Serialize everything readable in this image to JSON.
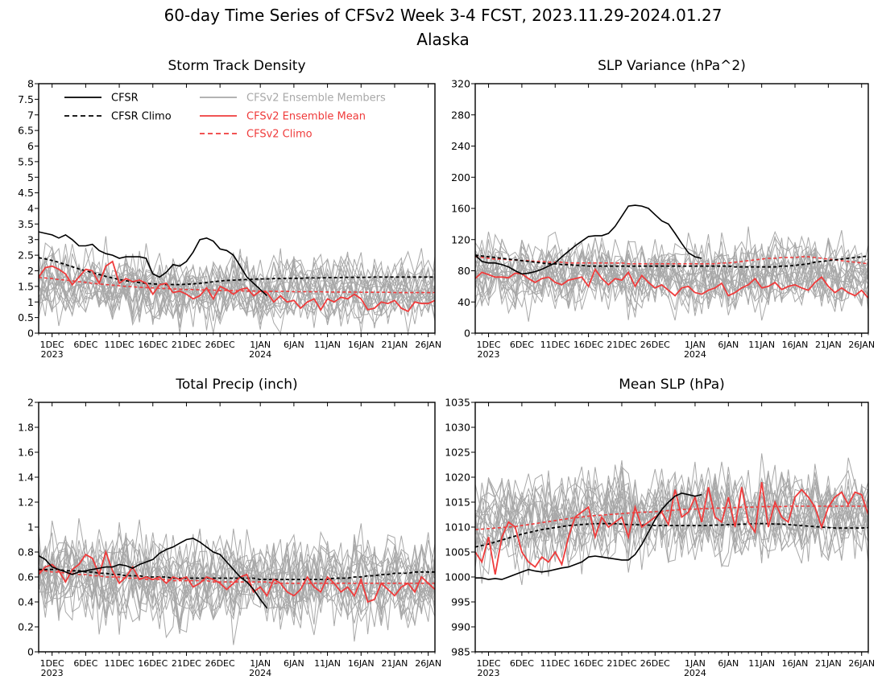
{
  "title_line1": "60-day Time Series of CFSv2 Week 3-4 FCST, 2023.11.29-2024.01.27",
  "title_line2": "Alaska",
  "x_axis": {
    "tick_days": [
      2,
      7,
      12,
      17,
      22,
      27,
      33,
      38,
      43,
      48,
      53,
      58
    ],
    "tick_labels": [
      "1DEC",
      "6DEC",
      "11DEC",
      "16DEC",
      "21DEC",
      "26DEC",
      "1JAN",
      "6JAN",
      "11JAN",
      "16JAN",
      "21JAN",
      "26JAN"
    ],
    "year_labels": [
      {
        "day": 2,
        "text": "2023"
      },
      {
        "day": 33,
        "text": "2024"
      }
    ],
    "xlim": [
      0,
      59
    ]
  },
  "legend": {
    "cfsr": "CFSR",
    "cfsr_climo": "CFSR Climo",
    "members": "CFSv2 Ensemble Members",
    "ens_mean": "CFSv2 Ensemble Mean",
    "cfsv2_climo": "CFSv2 Climo"
  },
  "colors": {
    "cfsr": "#000000",
    "members": "#a8a8a8",
    "ens_mean": "#ef3b3b",
    "frame": "#000000"
  },
  "chart_data": [
    {
      "type": "line",
      "title": "Storm Track Density",
      "ylim": [
        0,
        8
      ],
      "yticks": [
        0,
        0.5,
        1,
        1.5,
        2,
        2.5,
        3,
        3.5,
        4,
        4.5,
        5,
        5.5,
        6,
        6.5,
        7,
        7.5,
        8
      ],
      "ytick_labels": [
        "0",
        "0.5",
        "1",
        "1.5",
        "2",
        "2.5",
        "3",
        "3.5",
        "4",
        "4.5",
        "5",
        "5.5",
        "6",
        "6.5",
        "7",
        "7.5",
        "8"
      ],
      "members_center": 1.45,
      "members_spread": 0.55,
      "cfsr": [
        3.25,
        3.2,
        3.15,
        3.05,
        3.15,
        3.0,
        2.8,
        2.8,
        2.85,
        2.65,
        2.55,
        2.5,
        2.4,
        2.45,
        2.45,
        2.45,
        2.4,
        1.9,
        1.8,
        1.95,
        2.2,
        2.15,
        2.3,
        2.6,
        3.0,
        3.05,
        2.95,
        2.7,
        2.65,
        2.5,
        2.15,
        1.8,
        1.6,
        1.4,
        1.2
      ],
      "cfsr_climo": [
        2.42,
        2.38,
        2.33,
        2.27,
        2.2,
        2.13,
        2.06,
        2.0,
        1.94,
        1.88,
        1.82,
        1.77,
        1.72,
        1.68,
        1.65,
        1.62,
        1.6,
        1.58,
        1.57,
        1.56,
        1.56,
        1.56,
        1.57,
        1.58,
        1.6,
        1.62,
        1.65,
        1.67,
        1.69,
        1.7,
        1.71,
        1.72,
        1.73,
        1.74,
        1.74,
        1.75,
        1.75,
        1.76,
        1.76,
        1.76,
        1.77,
        1.77,
        1.77,
        1.78,
        1.78,
        1.78,
        1.79,
        1.79,
        1.79,
        1.79,
        1.8,
        1.8,
        1.8,
        1.8,
        1.8,
        1.8,
        1.8,
        1.8,
        1.8,
        1.8
      ],
      "ens_mean": [
        1.8,
        2.1,
        2.15,
        2.05,
        1.9,
        1.55,
        1.8,
        2.05,
        2.0,
        1.6,
        2.15,
        2.3,
        1.6,
        1.75,
        1.65,
        1.7,
        1.6,
        1.25,
        1.55,
        1.6,
        1.3,
        1.35,
        1.25,
        1.1,
        1.2,
        1.45,
        1.1,
        1.5,
        1.4,
        1.25,
        1.4,
        1.45,
        1.2,
        1.35,
        1.3,
        1.0,
        1.2,
        1.0,
        1.05,
        0.8,
        1.0,
        1.1,
        0.75,
        1.1,
        1.0,
        1.15,
        1.1,
        1.25,
        1.1,
        0.75,
        0.8,
        1.0,
        0.95,
        1.05,
        0.8,
        0.7,
        1.0,
        0.95,
        0.95,
        1.05
      ],
      "cfsv2_climo": [
        1.78,
        1.77,
        1.75,
        1.72,
        1.7,
        1.68,
        1.65,
        1.63,
        1.6,
        1.58,
        1.56,
        1.54,
        1.52,
        1.5,
        1.49,
        1.47,
        1.46,
        1.45,
        1.44,
        1.43,
        1.42,
        1.41,
        1.4,
        1.4,
        1.39,
        1.38,
        1.38,
        1.37,
        1.37,
        1.36,
        1.36,
        1.35,
        1.35,
        1.35,
        1.34,
        1.34,
        1.34,
        1.34,
        1.33,
        1.33,
        1.33,
        1.33,
        1.33,
        1.32,
        1.32,
        1.32,
        1.32,
        1.32,
        1.31,
        1.31,
        1.31,
        1.31,
        1.31,
        1.3,
        1.3,
        1.3,
        1.3,
        1.3,
        1.3,
        1.3
      ]
    },
    {
      "type": "line",
      "title": "SLP Variance (hPa^2)",
      "ylim": [
        0,
        320
      ],
      "yticks": [
        0,
        40,
        80,
        120,
        160,
        200,
        240,
        280,
        320
      ],
      "ytick_labels": [
        "0",
        "40",
        "80",
        "120",
        "160",
        "200",
        "240",
        "280",
        "320"
      ],
      "members_center": 60,
      "members_spread": 22,
      "cfsr": [
        100,
        92,
        90,
        90,
        88,
        85,
        80,
        76,
        77,
        79,
        82,
        86,
        90,
        98,
        105,
        112,
        118,
        124,
        125,
        125,
        128,
        137,
        150,
        163,
        164,
        163,
        160,
        152,
        144,
        140,
        128,
        115,
        103,
        98,
        96
      ],
      "cfsr_climo": [
        100,
        99,
        98,
        97,
        96,
        95,
        94,
        93,
        92,
        91,
        90,
        89,
        89,
        88,
        88,
        87,
        87,
        86,
        86,
        86,
        86,
        86,
        86,
        86,
        86,
        86,
        86,
        86,
        86,
        86,
        86,
        86,
        86,
        86,
        86,
        86,
        86,
        86,
        86,
        85,
        85,
        85,
        85,
        85,
        85,
        85,
        86,
        86,
        87,
        88,
        89,
        91,
        92,
        93,
        94,
        95,
        96,
        97,
        98,
        99
      ],
      "ens_mean": [
        70,
        78,
        75,
        72,
        72,
        71,
        77,
        76,
        70,
        65,
        70,
        72,
        65,
        62,
        68,
        70,
        72,
        60,
        82,
        70,
        62,
        70,
        68,
        78,
        60,
        74,
        65,
        58,
        62,
        55,
        48,
        58,
        60,
        52,
        50,
        55,
        58,
        64,
        48,
        52,
        58,
        62,
        70,
        58,
        60,
        65,
        56,
        60,
        62,
        58,
        55,
        65,
        72,
        60,
        52,
        58,
        52,
        48,
        55,
        45
      ],
      "cfsv2_climo": [
        98,
        97,
        96,
        95,
        95,
        94,
        94,
        93,
        93,
        92,
        92,
        91,
        91,
        91,
        90,
        90,
        90,
        90,
        90,
        90,
        90,
        90,
        90,
        89,
        89,
        89,
        89,
        89,
        89,
        89,
        89,
        89,
        89,
        89,
        89,
        89,
        89,
        90,
        90,
        91,
        92,
        93,
        94,
        95,
        96,
        96,
        97,
        97,
        97,
        98,
        98,
        97,
        96,
        95,
        94,
        93,
        92,
        91,
        90,
        89
      ]
    },
    {
      "type": "line",
      "title": "Total Precip (inch)",
      "ylim": [
        0,
        2
      ],
      "yticks": [
        0,
        0.2,
        0.4,
        0.6,
        0.8,
        1,
        1.2,
        1.4,
        1.6,
        1.8,
        2
      ],
      "ytick_labels": [
        "0",
        "0.2",
        "0.4",
        "0.6",
        "0.8",
        "1",
        "1.2",
        "1.4",
        "1.6",
        "1.8",
        "2"
      ],
      "members_center": 0.58,
      "members_spread": 0.18,
      "cfsr": [
        0.77,
        0.74,
        0.68,
        0.66,
        0.64,
        0.62,
        0.64,
        0.65,
        0.66,
        0.67,
        0.68,
        0.68,
        0.7,
        0.69,
        0.67,
        0.7,
        0.72,
        0.74,
        0.79,
        0.82,
        0.84,
        0.87,
        0.9,
        0.91,
        0.88,
        0.84,
        0.8,
        0.78,
        0.72,
        0.66,
        0.6,
        0.56,
        0.5,
        0.42,
        0.35
      ],
      "cfsr_climo": [
        0.66,
        0.66,
        0.66,
        0.66,
        0.65,
        0.65,
        0.65,
        0.64,
        0.64,
        0.63,
        0.63,
        0.62,
        0.62,
        0.61,
        0.61,
        0.61,
        0.6,
        0.6,
        0.6,
        0.6,
        0.59,
        0.59,
        0.59,
        0.59,
        0.59,
        0.59,
        0.59,
        0.59,
        0.59,
        0.59,
        0.59,
        0.59,
        0.59,
        0.58,
        0.58,
        0.58,
        0.58,
        0.58,
        0.58,
        0.58,
        0.58,
        0.58,
        0.58,
        0.58,
        0.59,
        0.59,
        0.59,
        0.6,
        0.6,
        0.61,
        0.61,
        0.62,
        0.62,
        0.63,
        0.63,
        0.63,
        0.64,
        0.64,
        0.64,
        0.64
      ],
      "ens_mean": [
        0.62,
        0.68,
        0.7,
        0.65,
        0.56,
        0.66,
        0.7,
        0.78,
        0.75,
        0.62,
        0.8,
        0.65,
        0.55,
        0.6,
        0.68,
        0.58,
        0.6,
        0.58,
        0.6,
        0.55,
        0.6,
        0.58,
        0.6,
        0.52,
        0.55,
        0.6,
        0.58,
        0.55,
        0.5,
        0.55,
        0.6,
        0.62,
        0.48,
        0.52,
        0.45,
        0.58,
        0.55,
        0.48,
        0.45,
        0.5,
        0.6,
        0.52,
        0.48,
        0.6,
        0.55,
        0.48,
        0.52,
        0.45,
        0.58,
        0.4,
        0.42,
        0.55,
        0.5,
        0.45,
        0.52,
        0.55,
        0.48,
        0.6,
        0.55,
        0.5
      ],
      "cfsv2_climo": [
        0.65,
        0.65,
        0.64,
        0.64,
        0.63,
        0.63,
        0.62,
        0.62,
        0.61,
        0.61,
        0.6,
        0.6,
        0.6,
        0.59,
        0.59,
        0.59,
        0.58,
        0.58,
        0.58,
        0.58,
        0.57,
        0.57,
        0.57,
        0.57,
        0.57,
        0.57,
        0.56,
        0.56,
        0.56,
        0.56,
        0.56,
        0.56,
        0.56,
        0.56,
        0.56,
        0.55,
        0.55,
        0.55,
        0.55,
        0.55,
        0.55,
        0.55,
        0.55,
        0.55,
        0.55,
        0.55,
        0.55,
        0.55,
        0.55,
        0.55,
        0.55,
        0.55,
        0.55,
        0.55,
        0.55,
        0.55,
        0.55,
        0.55,
        0.55,
        0.55
      ]
    },
    {
      "type": "line",
      "title": "Mean SLP (hPa)",
      "ylim": [
        985,
        1035
      ],
      "yticks": [
        985,
        990,
        995,
        1000,
        1005,
        1010,
        1015,
        1020,
        1025,
        1030,
        1035
      ],
      "ytick_labels": [
        "985",
        "990",
        "995",
        "1000",
        "1005",
        "1010",
        "1015",
        "1020",
        "1025",
        "1030",
        "1035"
      ],
      "members_center": 1011,
      "members_spread": 4.5,
      "cfsr": [
        999.8,
        999.8,
        999.5,
        999.7,
        999.5,
        1000.0,
        1000.5,
        1001.0,
        1001.5,
        1001.2,
        1001.0,
        1001.2,
        1001.5,
        1001.8,
        1002.0,
        1002.5,
        1003.0,
        1004.0,
        1004.2,
        1004.0,
        1003.8,
        1003.6,
        1003.4,
        1003.4,
        1004.5,
        1006.5,
        1009.0,
        1011.5,
        1013.5,
        1015.0,
        1016.2,
        1016.8,
        1016.5,
        1016.2,
        1016.5
      ],
      "cfsr_climo": [
        1006.0,
        1006.3,
        1006.6,
        1007.0,
        1007.4,
        1007.8,
        1008.2,
        1008.6,
        1008.9,
        1009.2,
        1009.5,
        1009.7,
        1009.9,
        1010.1,
        1010.3,
        1010.4,
        1010.5,
        1010.6,
        1010.7,
        1010.7,
        1010.7,
        1010.7,
        1010.6,
        1010.5,
        1010.5,
        1010.4,
        1010.4,
        1010.3,
        1010.3,
        1010.3,
        1010.3,
        1010.3,
        1010.3,
        1010.3,
        1010.3,
        1010.3,
        1010.4,
        1010.4,
        1010.5,
        1010.5,
        1010.6,
        1010.6,
        1010.7,
        1010.7,
        1010.7,
        1010.6,
        1010.6,
        1010.5,
        1010.4,
        1010.3,
        1010.2,
        1010.1,
        1010.0,
        1009.9,
        1009.8,
        1009.8,
        1009.8,
        1009.8,
        1009.8,
        1009.9
      ],
      "ens_mean": [
        1005.0,
        1003.0,
        1008.0,
        1000.5,
        1008.0,
        1011.0,
        1010.0,
        1005.0,
        1003.0,
        1002.0,
        1004.0,
        1003.0,
        1005.0,
        1002.5,
        1008.0,
        1012.0,
        1013.0,
        1014.0,
        1008.0,
        1012.0,
        1010.0,
        1011.0,
        1012.0,
        1008.0,
        1014.0,
        1010.0,
        1011.0,
        1012.0,
        1013.0,
        1010.5,
        1017.5,
        1012.0,
        1013.0,
        1016.0,
        1011.0,
        1018.0,
        1012.0,
        1011.0,
        1016.0,
        1010.0,
        1018.0,
        1011.0,
        1009.0,
        1019.0,
        1010.0,
        1015.0,
        1012.0,
        1011.0,
        1016.0,
        1017.5,
        1016.0,
        1014.0,
        1010.0,
        1014.0,
        1016.0,
        1017.0,
        1014.5,
        1017.0,
        1016.5,
        1012.5
      ],
      "cfsv2_climo": [
        1009.5,
        1009.6,
        1009.7,
        1009.8,
        1009.9,
        1010.0,
        1010.1,
        1010.3,
        1010.5,
        1010.7,
        1010.9,
        1011.1,
        1011.3,
        1011.5,
        1011.7,
        1011.9,
        1012.0,
        1012.2,
        1012.3,
        1012.4,
        1012.5,
        1012.6,
        1012.7,
        1012.8,
        1012.9,
        1013.0,
        1013.0,
        1013.1,
        1013.2,
        1013.3,
        1013.4,
        1013.5,
        1013.6,
        1013.6,
        1013.7,
        1013.7,
        1013.8,
        1013.8,
        1013.9,
        1013.9,
        1014.0,
        1014.0,
        1014.0,
        1014.1,
        1014.1,
        1014.1,
        1014.1,
        1014.2,
        1014.2,
        1014.2,
        1014.2,
        1014.2,
        1014.2,
        1014.2,
        1014.2,
        1014.2,
        1014.2,
        1014.2,
        1014.2,
        1014.2
      ]
    }
  ]
}
